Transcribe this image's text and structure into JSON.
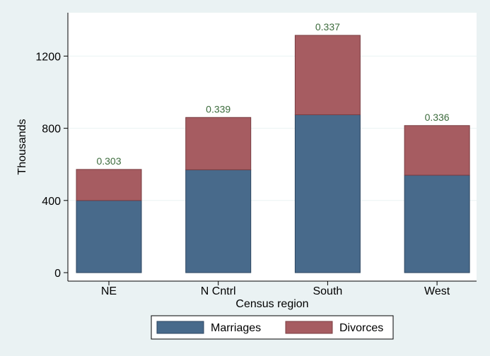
{
  "chart_data": {
    "type": "bar",
    "stacked": true,
    "categories": [
      "NE",
      "N Cntrl",
      "South",
      "West"
    ],
    "series": [
      {
        "name": "Marriages",
        "values": [
          400,
          570,
          875,
          540
        ]
      },
      {
        "name": "Divorces",
        "values": [
          172,
          290,
          440,
          275
        ]
      }
    ],
    "bar_labels": [
      "0.303",
      "0.339",
      "0.337",
      "0.336"
    ],
    "xlabel": "Census region",
    "ylabel": "Thousands",
    "ylim": [
      0,
      1400
    ],
    "yticks": [
      "0",
      "400",
      "800",
      "1200"
    ],
    "ytick_values": [
      0,
      400,
      800,
      1200
    ],
    "grid": true,
    "legend_position": "bottom"
  },
  "colors": {
    "background": "#eaf2f3",
    "plot_background": "#ffffff",
    "gridline": "#eaf2f3",
    "marriages": "#486a8b",
    "divorces": "#a65c61",
    "bar_label": "#3c6b3c"
  }
}
